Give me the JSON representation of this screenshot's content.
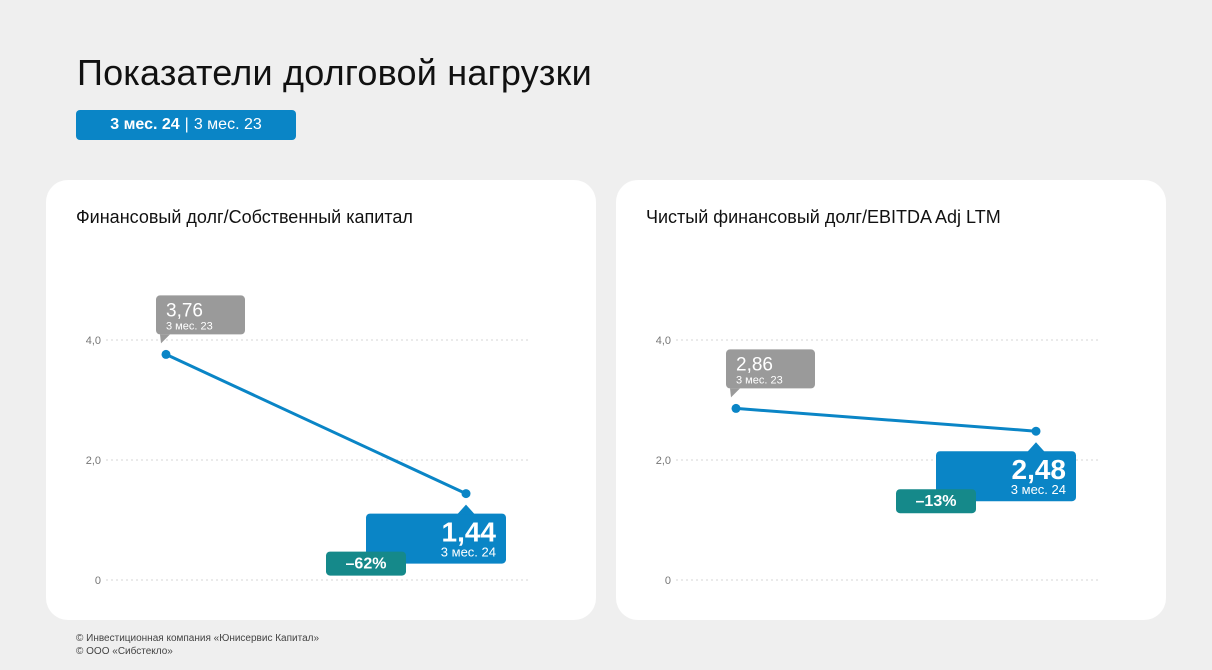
{
  "title": "Показатели долговой нагрузки",
  "period_pill": {
    "current": "3 мес. 24",
    "separator": "|",
    "previous": "3 мес. 23"
  },
  "colors": {
    "accent": "#0a85c6",
    "grey_label": "#9a9a9a",
    "change": "#15898a",
    "card": "#ffffff",
    "background": "#efefef"
  },
  "chart_data": [
    {
      "type": "line",
      "title": "Финансовый долг/Собственный капитал",
      "ylim": [
        0,
        4
      ],
      "y_ticks": [
        "0",
        "2,0",
        "4,0"
      ],
      "series": [
        {
          "x": [
            "3 мес. 23",
            "3 мес. 24"
          ],
          "values": [
            3.76,
            1.44
          ]
        }
      ],
      "labels": [
        {
          "value": "3,76",
          "period": "3 мес. 23"
        },
        {
          "value": "1,44",
          "period": "3 мес. 24"
        }
      ],
      "change": "–62%",
      "grid": true
    },
    {
      "type": "line",
      "title": "Чистый финансовый долг/EBITDA Adj LTM",
      "ylim": [
        0,
        4
      ],
      "y_ticks": [
        "0",
        "2,0",
        "4,0"
      ],
      "series": [
        {
          "x": [
            "3 мес. 23",
            "3 мес. 24"
          ],
          "values": [
            2.86,
            2.48
          ]
        }
      ],
      "labels": [
        {
          "value": "2,86",
          "period": "3 мес. 23"
        },
        {
          "value": "2,48",
          "period": "3 мес. 24"
        }
      ],
      "change": "–13%",
      "grid": true
    }
  ],
  "footer": {
    "line1": "© Инвестиционная компания «Юнисервис Капитал»",
    "line2": "© ООО «Сибстекло»"
  }
}
